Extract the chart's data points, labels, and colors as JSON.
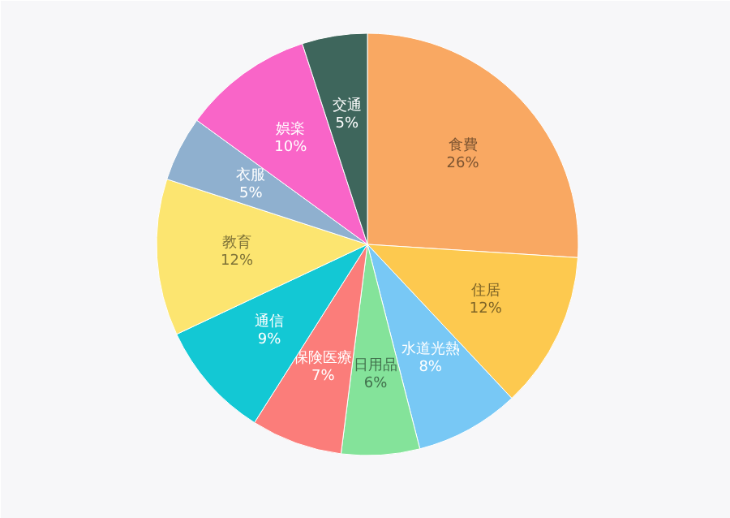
{
  "chart_data": {
    "type": "pie",
    "categories": [
      "食費",
      "住居",
      "水道光熱",
      "日用品",
      "保険医療",
      "通信",
      "教育",
      "衣服",
      "娯楽",
      "交通"
    ],
    "values": [
      26,
      12,
      8,
      6,
      7,
      9,
      12,
      5,
      10,
      5
    ],
    "value_labels": [
      "26%",
      "12%",
      "8%",
      "6%",
      "7%",
      "9%",
      "12%",
      "5%",
      "10%",
      "5%"
    ],
    "colors": [
      "#f9a862",
      "#fdc94f",
      "#78c8f5",
      "#84e39a",
      "#fb7d7a",
      "#13c8d4",
      "#fce570",
      "#8fb0cf",
      "#f965c8",
      "#3e665c"
    ]
  }
}
